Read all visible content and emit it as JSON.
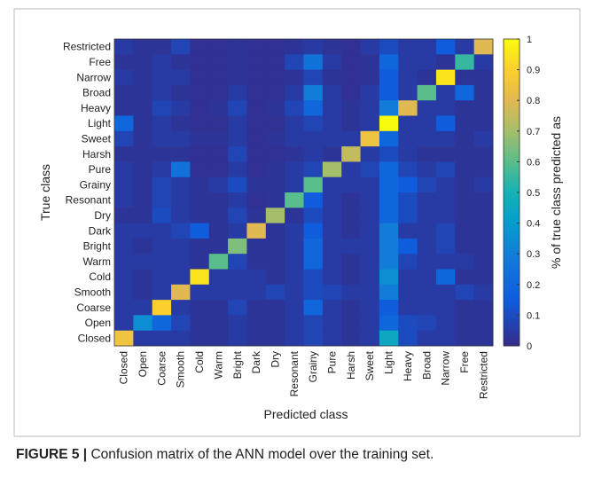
{
  "chart_data": {
    "type": "heatmap",
    "x_label": "Predicted class",
    "y_label": "True class",
    "colorbar_label": "% of true class predicted as",
    "colormap": "parula",
    "x_categories": [
      "Closed",
      "Open",
      "Coarse",
      "Smooth",
      "Cold",
      "Warm",
      "Bright",
      "Dark",
      "Dry",
      "Resonant",
      "Grainy",
      "Pure",
      "Harsh",
      "Sweet",
      "Light",
      "Heavy",
      "Broad",
      "Narrow",
      "Free",
      "Restricted"
    ],
    "y_categories": [
      "Restricted",
      "Free",
      "Narrow",
      "Broad",
      "Heavy",
      "Light",
      "Sweet",
      "Harsh",
      "Pure",
      "Grainy",
      "Resonant",
      "Dry",
      "Dark",
      "Bright",
      "Warm",
      "Cold",
      "Smooth",
      "Coarse",
      "Open",
      "Closed"
    ],
    "values": [
      [
        0.05,
        0.03,
        0.03,
        0.08,
        0.02,
        0.02,
        0.03,
        0.02,
        0.02,
        0.03,
        0.05,
        0.03,
        0.02,
        0.05,
        0.1,
        0.05,
        0.05,
        0.15,
        0.05,
        0.8
      ],
      [
        0.03,
        0.03,
        0.05,
        0.03,
        0.02,
        0.02,
        0.03,
        0.02,
        0.02,
        0.08,
        0.25,
        0.05,
        0.02,
        0.03,
        0.2,
        0.05,
        0.05,
        0.03,
        0.55,
        0.05
      ],
      [
        0.05,
        0.03,
        0.05,
        0.05,
        0.02,
        0.02,
        0.03,
        0.02,
        0.02,
        0.03,
        0.08,
        0.03,
        0.02,
        0.03,
        0.15,
        0.05,
        0.03,
        0.95,
        0.03,
        0.03
      ],
      [
        0.03,
        0.03,
        0.05,
        0.03,
        0.02,
        0.02,
        0.05,
        0.02,
        0.02,
        0.05,
        0.3,
        0.05,
        0.02,
        0.05,
        0.15,
        0.05,
        0.6,
        0.05,
        0.2,
        0.03
      ],
      [
        0.03,
        0.03,
        0.08,
        0.05,
        0.02,
        0.03,
        0.08,
        0.02,
        0.03,
        0.08,
        0.2,
        0.05,
        0.03,
        0.05,
        0.3,
        0.8,
        0.05,
        0.05,
        0.03,
        0.03
      ],
      [
        0.2,
        0.03,
        0.05,
        0.03,
        0.02,
        0.02,
        0.05,
        0.02,
        0.02,
        0.05,
        0.08,
        0.05,
        0.03,
        0.05,
        1.0,
        0.05,
        0.05,
        0.15,
        0.03,
        0.03
      ],
      [
        0.08,
        0.03,
        0.05,
        0.05,
        0.03,
        0.03,
        0.05,
        0.02,
        0.03,
        0.05,
        0.05,
        0.05,
        0.05,
        0.85,
        0.2,
        0.05,
        0.05,
        0.05,
        0.03,
        0.05
      ],
      [
        0.03,
        0.03,
        0.03,
        0.03,
        0.02,
        0.02,
        0.08,
        0.02,
        0.02,
        0.03,
        0.05,
        0.03,
        0.75,
        0.05,
        0.1,
        0.05,
        0.03,
        0.03,
        0.03,
        0.03
      ],
      [
        0.05,
        0.03,
        0.05,
        0.25,
        0.02,
        0.02,
        0.05,
        0.02,
        0.03,
        0.05,
        0.08,
        0.7,
        0.05,
        0.08,
        0.2,
        0.08,
        0.05,
        0.08,
        0.03,
        0.03
      ],
      [
        0.05,
        0.03,
        0.08,
        0.05,
        0.03,
        0.05,
        0.1,
        0.03,
        0.03,
        0.05,
        0.6,
        0.05,
        0.05,
        0.05,
        0.2,
        0.15,
        0.08,
        0.05,
        0.03,
        0.05
      ],
      [
        0.05,
        0.03,
        0.08,
        0.05,
        0.03,
        0.03,
        0.05,
        0.02,
        0.03,
        0.6,
        0.15,
        0.05,
        0.03,
        0.05,
        0.2,
        0.1,
        0.05,
        0.05,
        0.03,
        0.03
      ],
      [
        0.03,
        0.03,
        0.1,
        0.05,
        0.03,
        0.03,
        0.08,
        0.03,
        0.7,
        0.03,
        0.1,
        0.05,
        0.03,
        0.05,
        0.2,
        0.1,
        0.05,
        0.05,
        0.03,
        0.03
      ],
      [
        0.05,
        0.05,
        0.05,
        0.08,
        0.15,
        0.03,
        0.05,
        0.8,
        0.03,
        0.05,
        0.15,
        0.05,
        0.03,
        0.05,
        0.3,
        0.05,
        0.05,
        0.08,
        0.03,
        0.03
      ],
      [
        0.05,
        0.03,
        0.05,
        0.05,
        0.03,
        0.03,
        0.65,
        0.03,
        0.03,
        0.05,
        0.2,
        0.05,
        0.05,
        0.05,
        0.3,
        0.15,
        0.05,
        0.08,
        0.03,
        0.03
      ],
      [
        0.05,
        0.05,
        0.05,
        0.05,
        0.03,
        0.6,
        0.08,
        0.03,
        0.03,
        0.05,
        0.2,
        0.05,
        0.03,
        0.05,
        0.3,
        0.08,
        0.05,
        0.05,
        0.05,
        0.03
      ],
      [
        0.05,
        0.03,
        0.05,
        0.05,
        0.95,
        0.05,
        0.05,
        0.05,
        0.03,
        0.05,
        0.1,
        0.05,
        0.03,
        0.05,
        0.35,
        0.05,
        0.05,
        0.2,
        0.03,
        0.03
      ],
      [
        0.05,
        0.03,
        0.05,
        0.8,
        0.05,
        0.05,
        0.05,
        0.05,
        0.08,
        0.05,
        0.1,
        0.08,
        0.05,
        0.05,
        0.3,
        0.05,
        0.05,
        0.05,
        0.08,
        0.05
      ],
      [
        0.05,
        0.05,
        0.9,
        0.05,
        0.03,
        0.03,
        0.08,
        0.03,
        0.03,
        0.05,
        0.2,
        0.05,
        0.03,
        0.05,
        0.15,
        0.05,
        0.05,
        0.05,
        0.03,
        0.03
      ],
      [
        0.05,
        0.35,
        0.2,
        0.08,
        0.03,
        0.03,
        0.05,
        0.03,
        0.03,
        0.05,
        0.08,
        0.05,
        0.03,
        0.05,
        0.2,
        0.1,
        0.08,
        0.05,
        0.03,
        0.03
      ],
      [
        0.85,
        0.05,
        0.05,
        0.05,
        0.03,
        0.03,
        0.05,
        0.03,
        0.03,
        0.05,
        0.08,
        0.05,
        0.03,
        0.05,
        0.45,
        0.1,
        0.05,
        0.05,
        0.03,
        0.03
      ]
    ],
    "clim": [
      0,
      1
    ],
    "cticks": [
      0,
      0.1,
      0.2,
      0.3,
      0.4,
      0.5,
      0.6,
      0.7,
      0.8,
      0.9,
      1
    ]
  },
  "caption": {
    "label": "FIGURE 5 |",
    "text": "Confusion matrix of the ANN model over the training set."
  }
}
